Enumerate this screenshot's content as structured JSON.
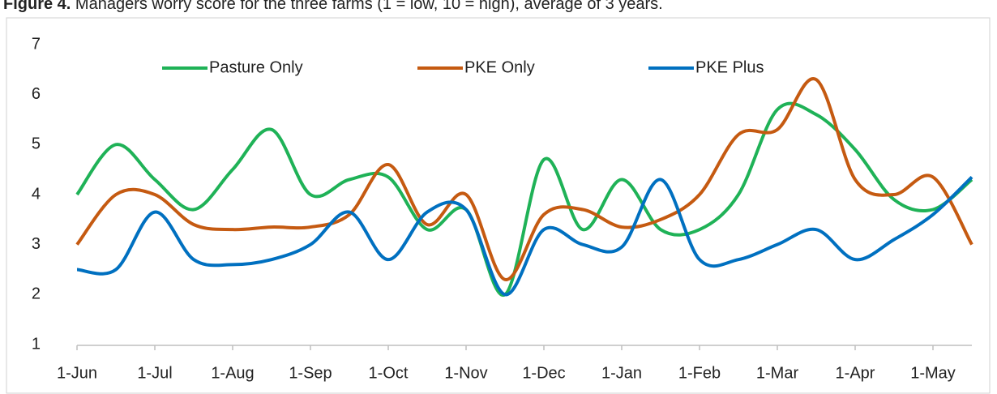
{
  "chart_data": {
    "type": "line",
    "title_label": "Figure 4.",
    "title": "Managers worry score for the three farms (1 = low, 10 = high), average of 3 years.",
    "categories": [
      "1-Jun",
      null,
      "1-Jul",
      null,
      "1-Aug",
      null,
      "1-Sep",
      null,
      "1-Oct",
      null,
      "1-Nov",
      null,
      "1-Dec",
      null,
      "1-Jan",
      null,
      "1-Feb",
      null,
      "1-Mar",
      null,
      "1-Apr",
      null,
      "1-May",
      null
    ],
    "series": [
      {
        "name": "Pasture Only",
        "color": "#1fb257",
        "values": [
          4.0,
          5.0,
          4.3,
          3.7,
          4.5,
          5.3,
          4.0,
          4.3,
          4.35,
          3.3,
          3.7,
          2.0,
          4.7,
          3.3,
          4.3,
          3.3,
          3.3,
          4.0,
          5.7,
          5.6,
          4.9,
          3.9,
          3.7,
          4.3
        ]
      },
      {
        "name": "PKE Only",
        "color": "#c55a11",
        "values": [
          3.0,
          4.0,
          4.0,
          3.4,
          3.3,
          3.35,
          3.35,
          3.6,
          4.6,
          3.4,
          4.0,
          2.3,
          3.6,
          3.7,
          3.35,
          3.5,
          4.0,
          5.2,
          5.3,
          6.3,
          4.3,
          4.0,
          4.35,
          3.0
        ]
      },
      {
        "name": "PKE Plus",
        "color": "#0070c0",
        "values": [
          2.5,
          2.5,
          3.65,
          2.7,
          2.6,
          2.7,
          3.0,
          3.65,
          2.7,
          3.65,
          3.7,
          2.0,
          3.3,
          3.0,
          2.95,
          4.3,
          2.7,
          2.7,
          3.0,
          3.3,
          2.7,
          3.1,
          3.6,
          4.35
        ]
      }
    ],
    "ylim": [
      1,
      7
    ],
    "yticks": [
      1,
      2,
      3,
      4,
      5,
      6,
      7
    ],
    "grid": false
  }
}
